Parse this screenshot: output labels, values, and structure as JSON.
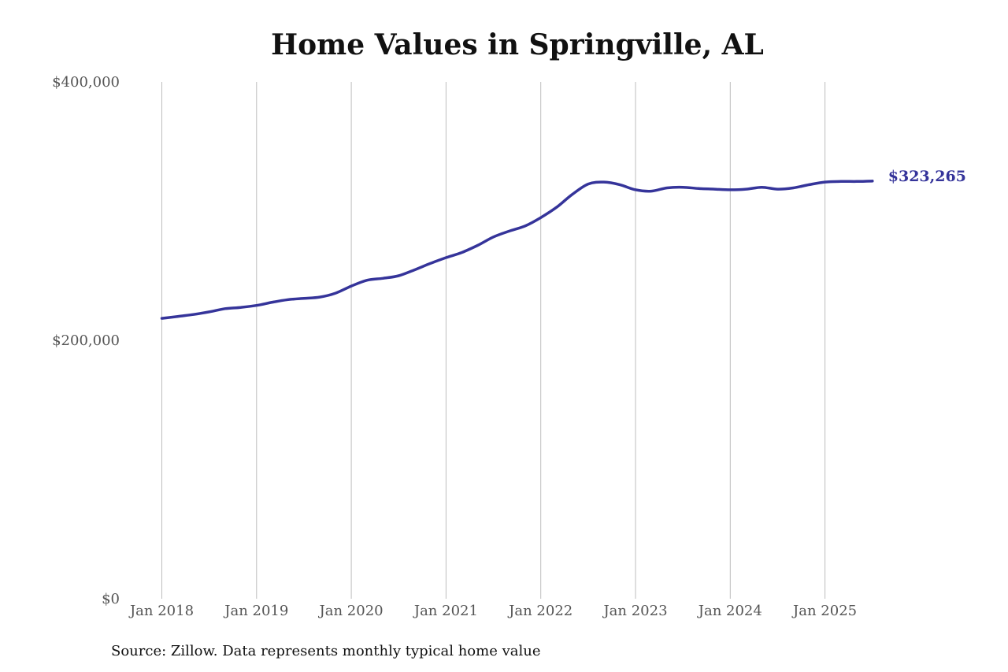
{
  "chart_data": {
    "type": "line",
    "title": "Home Values in Springville, AL",
    "xlabel": "",
    "ylabel": "",
    "x_ticks": [
      "Jan 2018",
      "Jan 2019",
      "Jan 2020",
      "Jan 2021",
      "Jan 2022",
      "Jan 2023",
      "Jan 2024",
      "Jan 2025"
    ],
    "y_ticks": [
      "$0",
      "$200,000",
      "$400,000"
    ],
    "ylim": [
      0,
      400000
    ],
    "xlim": [
      "2018-01",
      "2025-07"
    ],
    "grid": "vertical",
    "end_label": "$323,265",
    "series": [
      {
        "color": "#35349a",
        "points": [
          [
            "2018-01",
            217000
          ],
          [
            "2018-03",
            218500
          ],
          [
            "2018-05",
            220000
          ],
          [
            "2018-07",
            222000
          ],
          [
            "2018-09",
            224500
          ],
          [
            "2018-11",
            225500
          ],
          [
            "2019-01",
            227000
          ],
          [
            "2019-03",
            229500
          ],
          [
            "2019-05",
            231500
          ],
          [
            "2019-07",
            232500
          ],
          [
            "2019-09",
            233500
          ],
          [
            "2019-11",
            236500
          ],
          [
            "2020-01",
            242000
          ],
          [
            "2020-03",
            246500
          ],
          [
            "2020-05",
            248000
          ],
          [
            "2020-07",
            250000
          ],
          [
            "2020-09",
            254500
          ],
          [
            "2020-11",
            259500
          ],
          [
            "2021-01",
            264000
          ],
          [
            "2021-03",
            268000
          ],
          [
            "2021-05",
            273500
          ],
          [
            "2021-07",
            280000
          ],
          [
            "2021-09",
            284500
          ],
          [
            "2021-11",
            288500
          ],
          [
            "2022-01",
            295000
          ],
          [
            "2022-03",
            303000
          ],
          [
            "2022-05",
            313000
          ],
          [
            "2022-07",
            321000
          ],
          [
            "2022-09",
            322500
          ],
          [
            "2022-11",
            320500
          ],
          [
            "2023-01",
            316500
          ],
          [
            "2023-03",
            315500
          ],
          [
            "2023-05",
            318000
          ],
          [
            "2023-07",
            318500
          ],
          [
            "2023-09",
            317500
          ],
          [
            "2023-11",
            317000
          ],
          [
            "2024-01",
            316500
          ],
          [
            "2024-03",
            317000
          ],
          [
            "2024-05",
            318500
          ],
          [
            "2024-07",
            317000
          ],
          [
            "2024-09",
            318000
          ],
          [
            "2024-11",
            320500
          ],
          [
            "2025-01",
            322500
          ],
          [
            "2025-03",
            323000
          ],
          [
            "2025-05",
            323000
          ],
          [
            "2025-07",
            323265
          ]
        ]
      }
    ]
  },
  "footer": {
    "source": "Source: Zillow. Data represents monthly typical home value"
  }
}
